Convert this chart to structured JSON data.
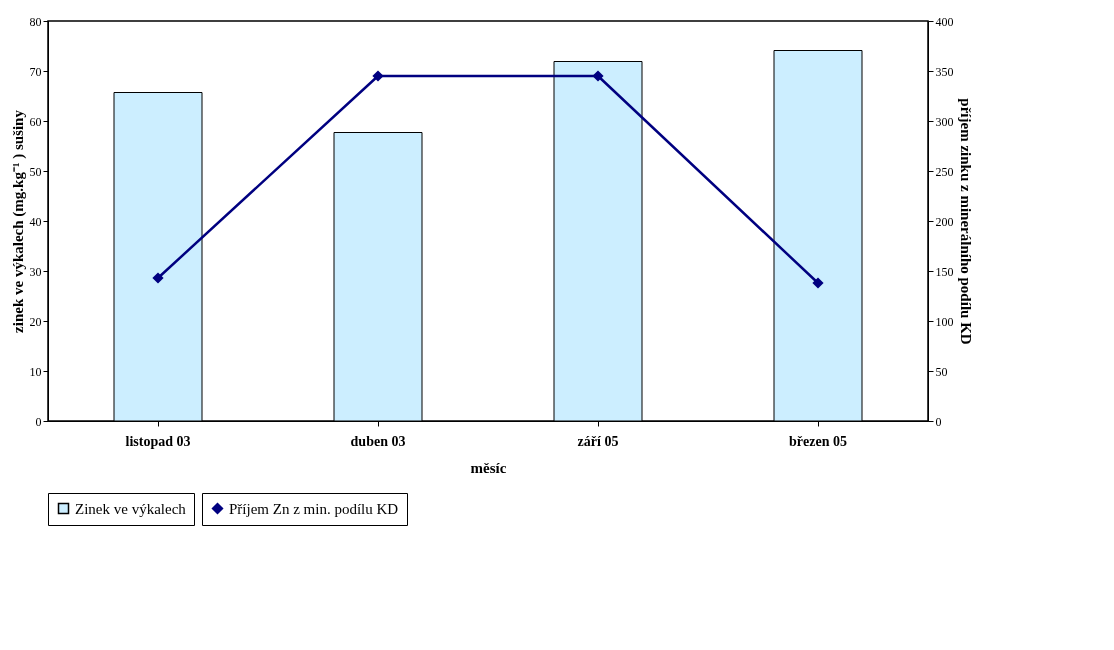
{
  "chart_data": {
    "type": "bar",
    "xlabel": "měsíc",
    "ylabel": "zinek ve výkalech (mg.kg⁻¹ ) sušiny",
    "y2label": "příjem zinku z minerálního podílu KD",
    "categories": [
      "listopad 03",
      "duben 03",
      "září 05",
      "březen 05"
    ],
    "series": [
      {
        "name": "Zinek ve výkalech",
        "color": "#cceeff",
        "values": [
          65.7,
          57.7,
          71.9,
          74.1
        ]
      },
      {
        "name": "Příjem Zn z min. podílu KD",
        "type": "line",
        "axis": "y2",
        "color": "#000080",
        "values": [
          143,
          345,
          345,
          138
        ]
      }
    ],
    "ylim": [
      0,
      80
    ],
    "yticks": [
      0,
      10,
      20,
      30,
      40,
      50,
      60,
      70,
      80
    ],
    "y2lim": [
      0,
      400
    ],
    "y2ticks": [
      0,
      50,
      100,
      150,
      200,
      250,
      300,
      350,
      400
    ],
    "marker": "diamond",
    "line_style": "solid",
    "grid": false,
    "legend": "bottom"
  }
}
